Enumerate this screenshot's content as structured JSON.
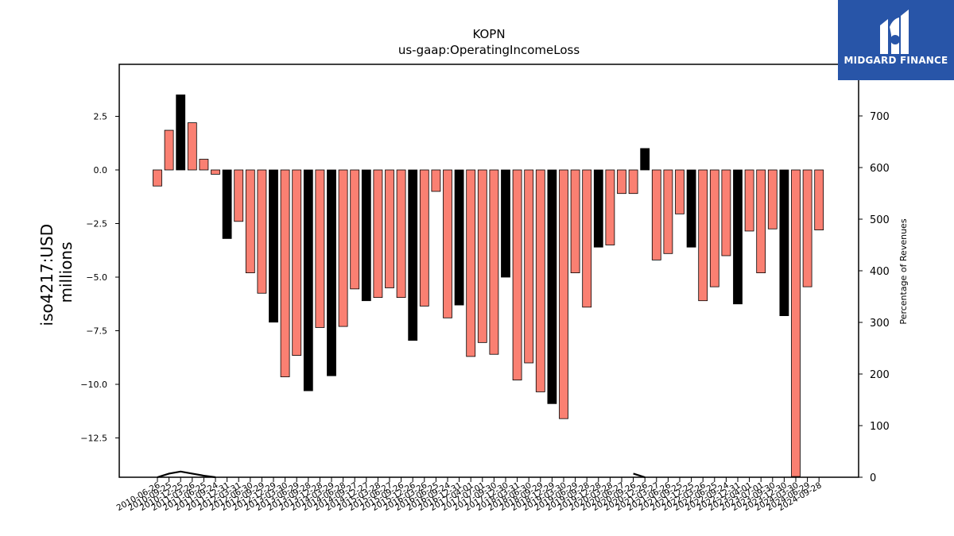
{
  "brand": {
    "name": "MIDGARD FINANCE",
    "logo_icon": "midgard-logo-icon",
    "background": "#2855a8"
  },
  "chart_data": {
    "type": "bar",
    "title": "KOPN",
    "subtitle": "us-gaap:OperatingIncomeLoss",
    "ylabel": "iso4217:USD\nmillions",
    "y2label": "Percentage of Revenues",
    "ylim": [
      -14.3,
      4.9
    ],
    "y2lim": [
      0,
      800
    ],
    "yticks": [
      "2.5",
      "0.0",
      "−2.5",
      "−5.0",
      "−7.5",
      "−10.0",
      "−12.5"
    ],
    "y2ticks": [
      "0",
      "100",
      "200",
      "300",
      "400",
      "500",
      "600",
      "700"
    ],
    "bar_colors": {
      "quarter": "#fa8072",
      "year_end": "#000000"
    },
    "categories": [
      "2010-06-26",
      "2010-09-25",
      "2010-12-25",
      "2011-03-26",
      "2011-06-25",
      "2011-09-24",
      "2011-12-31",
      "2012-03-31",
      "2012-06-30",
      "2012-09-29",
      "2012-12-29",
      "2013-03-30",
      "2013-06-29",
      "2013-09-28",
      "2013-12-28",
      "2014-03-29",
      "2014-06-28",
      "2014-09-27",
      "2014-12-27",
      "2015-03-28",
      "2015-06-27",
      "2015-09-26",
      "2015-12-26",
      "2016-03-26",
      "2016-06-25",
      "2016-09-24",
      "2016-12-31",
      "2017-04-01",
      "2017-07-01",
      "2017-09-30",
      "2017-12-30",
      "2018-03-31",
      "2018-06-30",
      "2018-09-29",
      "2018-12-29",
      "2019-03-30",
      "2019-06-29",
      "2019-09-28",
      "2019-12-28",
      "2020-03-28",
      "2020-06-27",
      "2020-09-26",
      "2020-12-26",
      "2021-03-27",
      "2021-06-26",
      "2021-09-25",
      "2021-12-25",
      "2022-03-26",
      "2022-06-25",
      "2022-09-24",
      "2022-12-31",
      "2023-04-01",
      "2023-07-01",
      "2023-09-30",
      "2023-12-30",
      "2024-03-30",
      "2024-06-29",
      "2024-09-28"
    ],
    "values": [
      -0.75,
      1.85,
      3.5,
      2.2,
      0.5,
      -0.2,
      -3.2,
      -2.4,
      -4.8,
      -5.75,
      -7.1,
      -9.65,
      -8.65,
      -10.3,
      -7.35,
      -9.6,
      -7.3,
      -5.55,
      -6.1,
      -5.95,
      -5.5,
      -5.95,
      -7.95,
      -6.35,
      -1.0,
      -6.9,
      -6.3,
      -8.7,
      -8.05,
      -8.6,
      -5.0,
      -9.8,
      -9.0,
      -10.35,
      -10.9,
      -11.6,
      -4.8,
      -6.4,
      -3.6,
      -3.5,
      -1.1,
      -1.1,
      1.0,
      -4.2,
      -3.9,
      -2.05,
      -3.6,
      -6.1,
      -5.45,
      -4.0,
      -6.25,
      -2.85,
      -4.8,
      -2.75,
      -6.8,
      -14.3,
      -5.45,
      -2.8
    ],
    "is_year_end": [
      0,
      0,
      1,
      0,
      0,
      0,
      1,
      0,
      0,
      0,
      1,
      0,
      0,
      1,
      0,
      1,
      0,
      0,
      1,
      0,
      0,
      0,
      1,
      0,
      0,
      0,
      1,
      0,
      0,
      0,
      1,
      0,
      0,
      0,
      1,
      0,
      0,
      0,
      1,
      0,
      0,
      0,
      1,
      0,
      0,
      0,
      1,
      0,
      0,
      0,
      1,
      0,
      0,
      0,
      1,
      0,
      0,
      0
    ],
    "pct_of_revenue_line": {
      "x": [
        "2010-06-26",
        "2010-09-25",
        "2010-12-25",
        "2011-03-26",
        "2011-06-25",
        "2011-09-24",
        "2020-09-26",
        "2020-12-26"
      ],
      "y": [
        0,
        7,
        11,
        7,
        3,
        0,
        7,
        0
      ]
    }
  }
}
